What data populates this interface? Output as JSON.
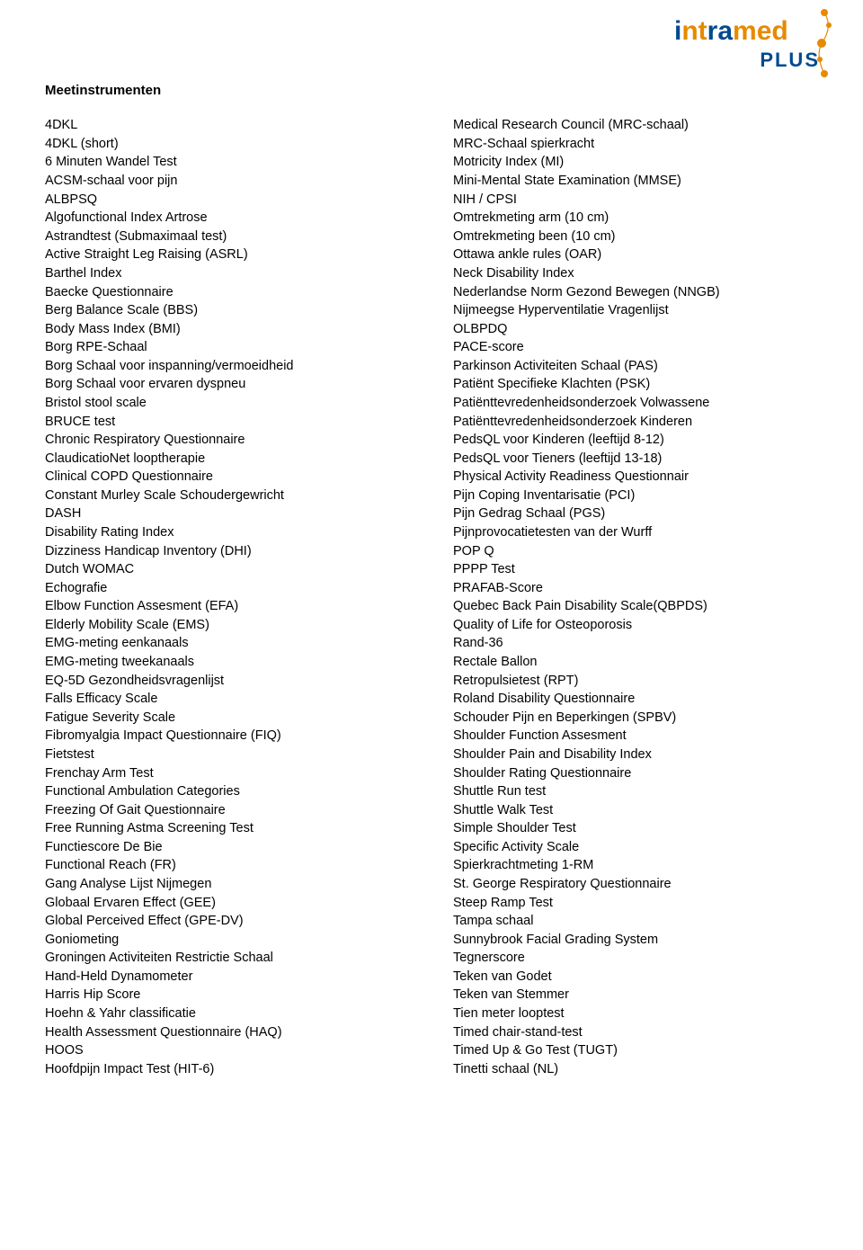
{
  "logo": {
    "plus": "PLUS"
  },
  "section_title": "Meetinstrumenten",
  "left": [
    "4DKL",
    "4DKL (short)",
    "6 Minuten Wandel Test",
    "ACSM-schaal voor pijn",
    "ALBPSQ",
    "Algofunctional Index Artrose",
    "Astrandtest (Submaximaal test)",
    "Active Straight Leg Raising (ASRL)",
    "Barthel Index",
    "Baecke Questionnaire",
    "Berg Balance Scale (BBS)",
    "Body Mass Index (BMI)",
    "Borg RPE-Schaal",
    "Borg Schaal voor inspanning/vermoeidheid",
    "Borg Schaal voor ervaren dyspneu",
    "Bristol stool scale",
    "BRUCE test",
    "Chronic Respiratory Questionnaire",
    "ClaudicatioNet looptherapie",
    "Clinical COPD Questionnaire",
    "Constant Murley Scale Schoudergewricht",
    "DASH",
    "Disability Rating Index",
    "Dizziness Handicap Inventory (DHI)",
    "Dutch WOMAC",
    "Echografie",
    "Elbow Function Assesment (EFA)",
    "Elderly Mobility Scale (EMS)",
    "EMG-meting eenkanaals",
    "EMG-meting tweekanaals",
    "EQ-5D Gezondheidsvragenlijst",
    "Falls Efficacy Scale",
    "Fatigue Severity Scale",
    "Fibromyalgia Impact Questionnaire (FIQ)",
    "Fietstest",
    "Frenchay Arm Test",
    "Functional Ambulation Categories",
    "Freezing Of Gait Questionnaire",
    "Free Running Astma Screening Test",
    "Functiescore De Bie",
    "Functional Reach (FR)",
    "Gang Analyse Lijst Nijmegen",
    "Globaal Ervaren Effect (GEE)",
    "Global Perceived Effect (GPE-DV)",
    "Goniometing",
    "Groningen Activiteiten Restrictie Schaal",
    "Hand-Held Dynamometer",
    "Harris Hip Score",
    "Hoehn & Yahr classificatie",
    "Health Assessment Questionnaire (HAQ)",
    "HOOS",
    "Hoofdpijn Impact Test (HIT-6)"
  ],
  "right": [
    "Medical Research Council (MRC-schaal)",
    "MRC-Schaal spierkracht",
    "Motricity Index (MI)",
    "Mini-Mental State Examination (MMSE)",
    "NIH / CPSI",
    "Omtrekmeting arm (10 cm)",
    "Omtrekmeting been (10 cm)",
    "Ottawa ankle rules (OAR)",
    "Neck Disability Index",
    "Nederlandse Norm Gezond Bewegen (NNGB)",
    "Nijmeegse Hyperventilatie Vragenlijst",
    "OLBPDQ",
    "PACE-score",
    "Parkinson Activiteiten Schaal (PAS)",
    "Patiënt Specifieke Klachten (PSK)",
    "Patiënttevredenheidsonderzoek Volwassene",
    "Patiënttevredenheidsonderzoek Kinderen",
    "PedsQL voor Kinderen (leeftijd 8-12)",
    "PedsQL voor Tieners (leeftijd 13-18)",
    "Physical Activity Readiness Questionnair",
    "Pijn Coping Inventarisatie (PCI)",
    "Pijn Gedrag Schaal (PGS)",
    "Pijnprovocatietesten van der Wurff",
    "POP Q",
    "PPPP Test",
    "PRAFAB-Score",
    "Quebec Back Pain Disability Scale(QBPDS)",
    "Quality of Life for Osteoporosis",
    "Rand-36",
    "Rectale Ballon",
    "Retropulsietest (RPT)",
    "Roland Disability Questionnaire",
    "Schouder Pijn en Beperkingen (SPBV)",
    "Shoulder Function Assesment",
    "Shoulder Pain and Disability Index",
    "Shoulder Rating Questionnaire",
    "Shuttle Run test",
    "Shuttle Walk Test",
    "Simple Shoulder Test",
    "Specific Activity Scale",
    "Spierkrachtmeting 1-RM",
    "St. George Respiratory Questionnaire",
    "Steep Ramp Test",
    "Tampa schaal",
    "Sunnybrook Facial Grading System",
    "Tegnerscore",
    "Teken van Godet",
    "Teken van Stemmer",
    "Tien meter looptest",
    "Timed chair-stand-test",
    "Timed Up & Go Test (TUGT)",
    "Tinetti schaal (NL)"
  ]
}
